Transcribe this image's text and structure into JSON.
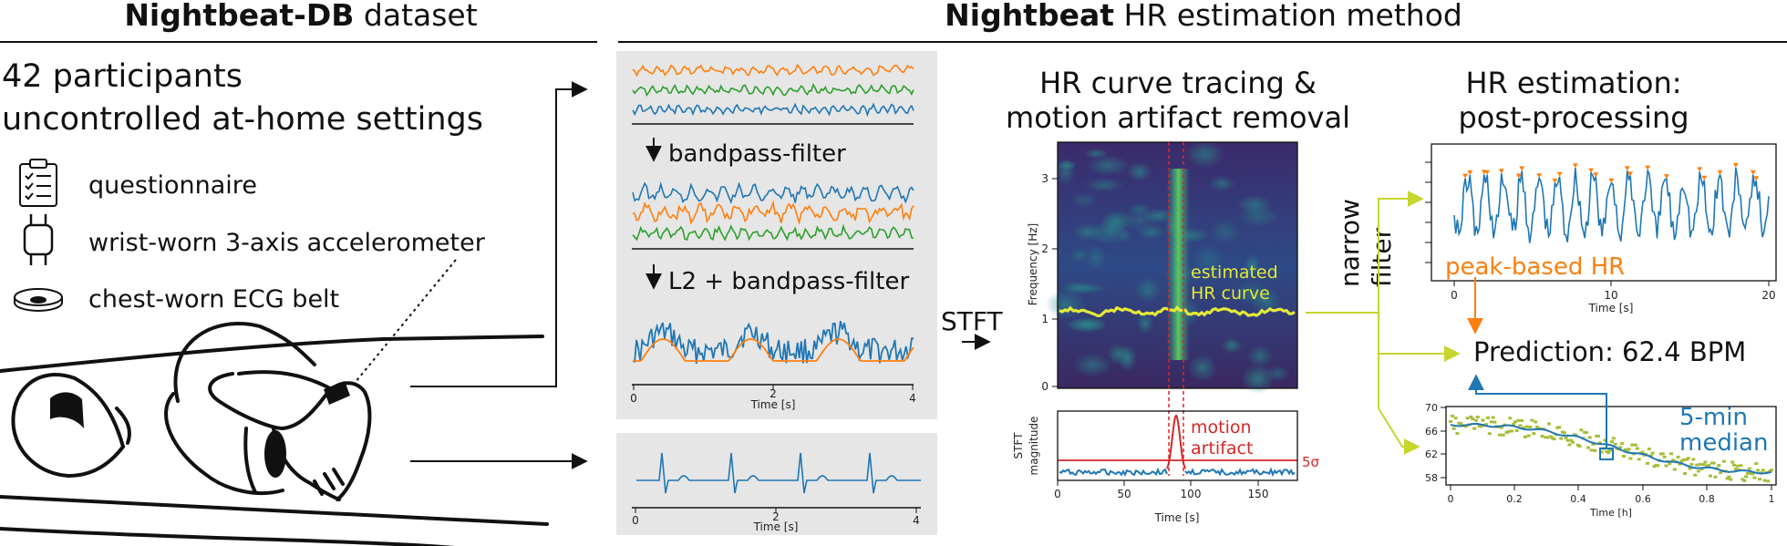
{
  "left": {
    "title_bold": "Nightbeat-DB",
    "title_rest": " dataset",
    "line1": "42 participants",
    "line2": "uncontrolled at-home settings",
    "items": [
      {
        "icon": "clipboard-icon",
        "label": "questionnaire"
      },
      {
        "icon": "watch-icon",
        "label": "wrist-worn 3-axis accelerometer"
      },
      {
        "icon": "chest-belt-icon",
        "label": "chest-worn ECG belt"
      }
    ]
  },
  "right": {
    "title_bold": "Nightbeat",
    "title_rest": " HR estimation method"
  },
  "accel_panel": {
    "step1": "bandpass-filter",
    "step2": "L2 + bandpass-filter",
    "xlabel": "Time [s]",
    "xticks": [
      "0",
      "2",
      "4"
    ]
  },
  "ecg_panel": {
    "xlabel": "Time [s]",
    "xticks": [
      "0",
      "2",
      "4"
    ]
  },
  "stft_label": "STFT",
  "spectrogram": {
    "title1": "HR curve tracing &",
    "title2": "motion artifact removal",
    "ylabel": "Frequency [Hz]",
    "yticks": [
      "0",
      "1",
      "2",
      "3"
    ],
    "annot1": "estimated",
    "annot2": "HR curve"
  },
  "magnitude": {
    "ylabel1": "STFT",
    "ylabel2": "magnitude",
    "annot1": "motion",
    "annot2": "artifact",
    "threshold": "5σ",
    "xlabel": "Time [s]",
    "xticks": [
      "0",
      "50",
      "100",
      "150"
    ]
  },
  "narrow_filter": {
    "line1": "narrow",
    "line2": "filter"
  },
  "post": {
    "title1": "HR estimation:",
    "title2": "post-processing",
    "peak_label": "peak-based HR",
    "peak_xlabel": "Time [s]",
    "peak_xticks": [
      "0",
      "10",
      "20"
    ],
    "prediction": "Prediction: 62.4 BPM",
    "median1": "5-min",
    "median2": "median",
    "hr_xlabel": "Time [h]",
    "hr_xticks": [
      "0",
      "0.2",
      "0.4",
      "0.6",
      "0.8",
      "1"
    ],
    "hr_yticks": [
      "58",
      "62",
      "66",
      "70"
    ]
  },
  "colors": {
    "blue": "#1f77b4",
    "orange": "#ff7f0e",
    "green": "#2ca02c",
    "red": "#d62728",
    "lime": "#c6d62c",
    "olive": "#a8bd3a",
    "panel_bg": "#e6e6e6"
  }
}
